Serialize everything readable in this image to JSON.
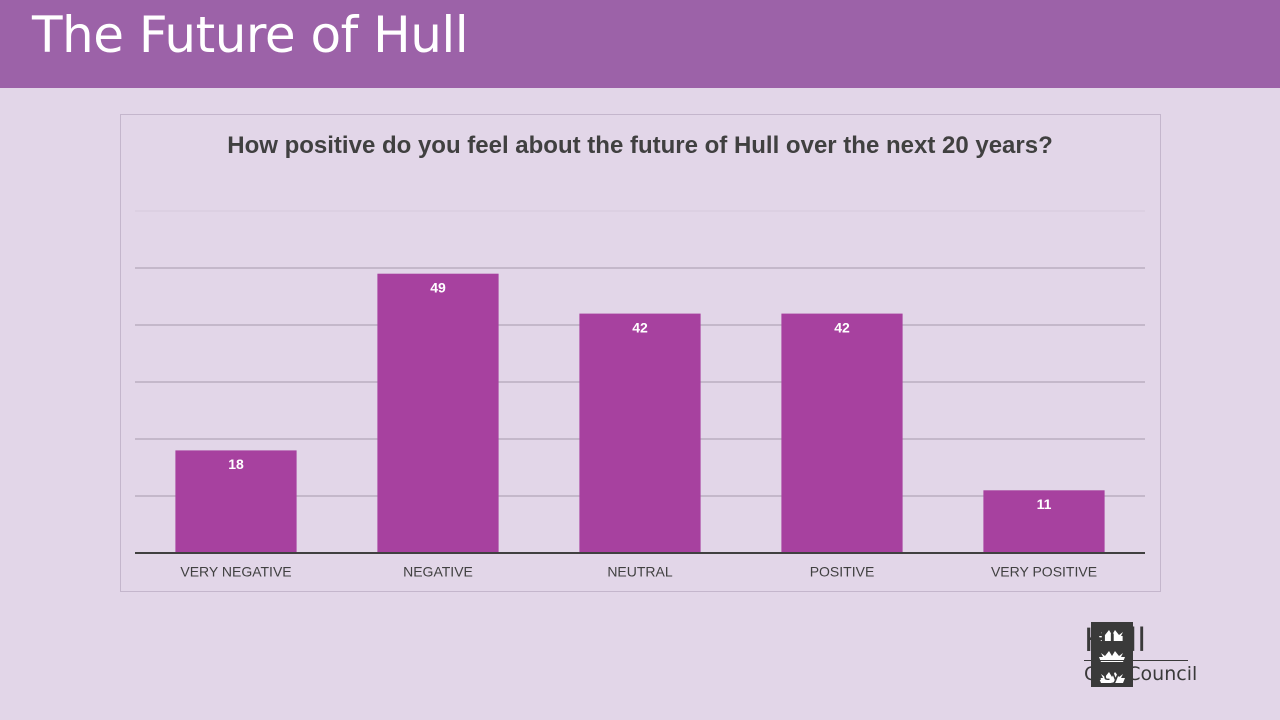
{
  "slide_title": "The Future of Hull",
  "chart_data": {
    "type": "bar",
    "title": "How positive do you feel about the future of Hull over the next 20 years?",
    "categories": [
      "VERY NEGATIVE",
      "NEGATIVE",
      "NEUTRAL",
      "POSITIVE",
      "VERY POSITIVE"
    ],
    "values": [
      18,
      49,
      42,
      42,
      11
    ],
    "color": "#a7419f",
    "ylim": [
      0,
      60
    ],
    "yticks": [
      0,
      10,
      20,
      30,
      40,
      50,
      60
    ],
    "show_tick_labels": false,
    "grid": true
  },
  "logo": {
    "name": "Hull",
    "subtitle": "City Council"
  }
}
